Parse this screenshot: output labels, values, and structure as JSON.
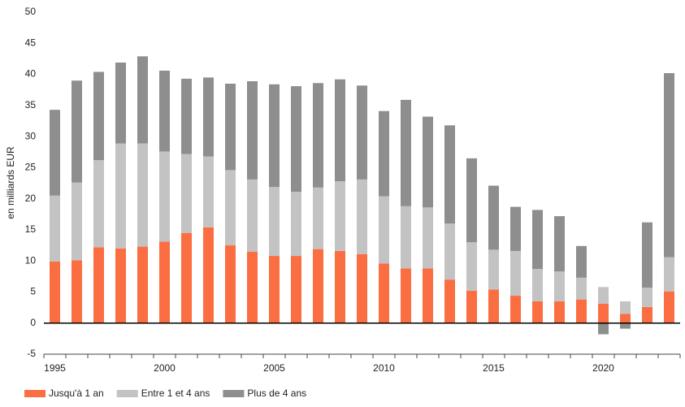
{
  "chart_data": {
    "type": "stacked-bar",
    "ylabel": "en milliards EUR",
    "categories": [
      "1995",
      null,
      null,
      null,
      null,
      "2000",
      null,
      null,
      null,
      null,
      "2005",
      null,
      null,
      null,
      null,
      "2010",
      null,
      null,
      null,
      null,
      "2015",
      null,
      null,
      null,
      null,
      "2020",
      null,
      null,
      null
    ],
    "series": [
      {
        "name": "Jusqu'à 1 an",
        "color": "#fb6e41",
        "values": [
          9.9,
          10.1,
          12.2,
          12.0,
          12.3,
          13.1,
          14.5,
          15.4,
          12.5,
          11.5,
          10.8,
          10.8,
          11.9,
          11.6,
          11.1,
          9.6,
          8.8,
          8.8,
          7.0,
          5.2,
          5.4,
          4.4,
          3.5,
          3.5,
          3.8,
          3.1,
          1.5,
          2.6,
          5.1
        ]
      },
      {
        "name": "Entre 1 et 4 ans",
        "color": "#c3c3c3",
        "values": [
          10.6,
          12.5,
          14.0,
          16.9,
          16.6,
          14.5,
          12.7,
          11.4,
          12.1,
          11.6,
          11.1,
          10.3,
          9.9,
          11.2,
          12.0,
          10.8,
          10.0,
          9.8,
          9.0,
          7.8,
          6.4,
          7.2,
          5.2,
          4.8,
          3.5,
          2.7,
          2.0,
          3.1,
          5.5
        ]
      },
      {
        "name": "Plus de 4 ans",
        "color": "#8e8e8e",
        "values": [
          13.8,
          16.4,
          14.2,
          13.0,
          14.0,
          13.0,
          12.1,
          12.7,
          13.9,
          15.8,
          16.5,
          17.0,
          16.8,
          16.4,
          15.1,
          13.7,
          17.1,
          14.6,
          15.8,
          13.5,
          10.3,
          7.1,
          9.5,
          8.9,
          5.1,
          -1.8,
          -0.9,
          10.5,
          29.6
        ]
      }
    ],
    "ylim": [
      -5,
      50
    ],
    "yticks": [
      -5,
      0,
      5,
      10,
      15,
      20,
      25,
      30,
      35,
      40,
      45,
      50
    ],
    "legend": "bottom-left"
  }
}
